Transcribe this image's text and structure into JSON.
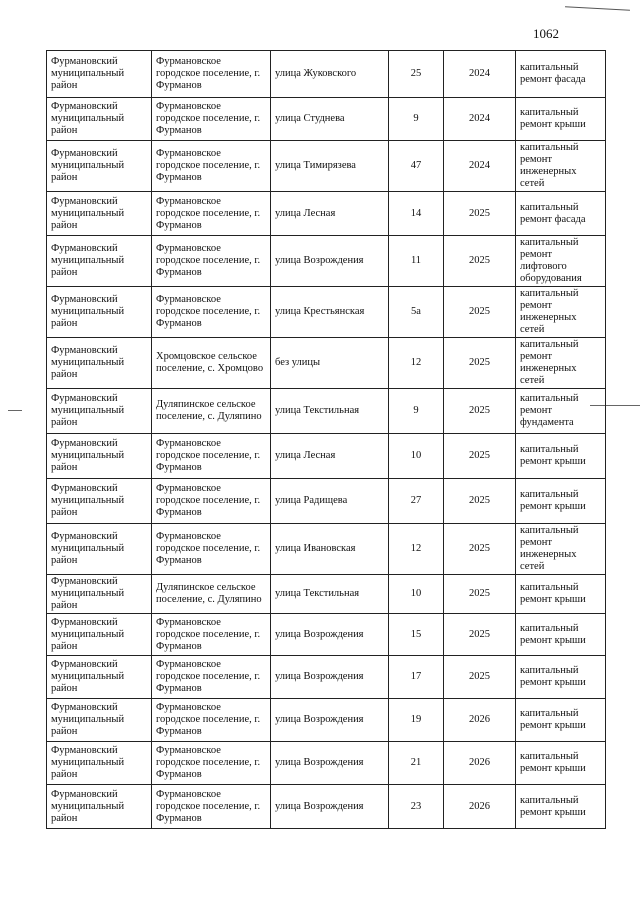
{
  "page_number": "1062",
  "rows": [
    {
      "district": "Фурмановский муниципальный район",
      "settlement": "Фурмановское городское поселение, г. Фурманов",
      "street": "улица  Жуковского",
      "house": "25",
      "year": "2024",
      "work": "капитальный ремонт фасада"
    },
    {
      "district": "Фурмановский муниципальный район",
      "settlement": "Фурмановское городское поселение, г. Фурманов",
      "street": "улица  Студнева",
      "house": "9",
      "year": "2024",
      "work": "капитальный ремонт крыши"
    },
    {
      "district": "Фурмановский муниципальный район",
      "settlement": "Фурмановское городское поселение, г. Фурманов",
      "street": "улица Тимирязева",
      "house": "47",
      "year": "2024",
      "work": "капитальный ремонт инженерных сетей"
    },
    {
      "district": "Фурмановский муниципальный район",
      "settlement": "Фурмановское городское поселение, г. Фурманов",
      "street": "улица Лесная",
      "house": "14",
      "year": "2025",
      "work": "капитальный ремонт фасада"
    },
    {
      "district": "Фурмановский муниципальный район",
      "settlement": "Фурмановское городское поселение, г. Фурманов",
      "street": "улица Возрождения",
      "house": "11",
      "year": "2025",
      "work": "капитальный ремонт лифтового оборудования"
    },
    {
      "district": "Фурмановский муниципальный район",
      "settlement": "Фурмановское городское поселение, г. Фурманов",
      "street": "улица Крестьянская",
      "house": "5а",
      "year": "2025",
      "work": "капитальный ремонт инженерных сетей"
    },
    {
      "district": "Фурмановский муниципальный район",
      "settlement": "Хромцовское сельское поселение, с. Хромцово",
      "street": "без улицы",
      "house": "12",
      "year": "2025",
      "work": "капитальный ремонт инженерных сетей"
    },
    {
      "district": "Фурмановский муниципальный район",
      "settlement": "Дуляпинское сельское поселение, с. Дуляпино",
      "street": "улица Текстильная",
      "house": "9",
      "year": "2025",
      "work": "капитальный ремонт фундамента"
    },
    {
      "district": "Фурмановский муниципальный район",
      "settlement": "Фурмановское городское поселение, г. Фурманов",
      "street": "улица Лесная",
      "house": "10",
      "year": "2025",
      "work": "капитальный ремонт крыши"
    },
    {
      "district": "Фурмановский муниципальный район",
      "settlement": "Фурмановское городское поселение, г. Фурманов",
      "street": "улица Радищева",
      "house": "27",
      "year": "2025",
      "work": "капитальный ремонт крыши"
    },
    {
      "district": "Фурмановский муниципальный район",
      "settlement": "Фурмановское городское поселение, г. Фурманов",
      "street": "улица  Ивановская",
      "house": "12",
      "year": "2025",
      "work": "капитальный ремонт инженерных сетей"
    },
    {
      "district": "Фурмановский муниципальный район",
      "settlement": "Дуляпинское сельское поселение, с. Дуляпино",
      "street": "улица Текстильная",
      "house": "10",
      "year": "2025",
      "work": "капитальный ремонт крыши"
    },
    {
      "district": "Фурмановский муниципальный район",
      "settlement": "Фурмановское городское поселение, г. Фурманов",
      "street": "улица Возрождения",
      "house": "15",
      "year": "2025",
      "work": "капитальный ремонт крыши"
    },
    {
      "district": "Фурмановский муниципальный район",
      "settlement": "Фурмановское городское поселение, г. Фурманов",
      "street": "улица Возрождения",
      "house": "17",
      "year": "2025",
      "work": "капитальный ремонт крыши"
    },
    {
      "district": "Фурмановский муниципальный район",
      "settlement": "Фурмановское городское поселение, г. Фурманов",
      "street": "улица Возрождения",
      "house": "19",
      "year": "2026",
      "work": "капитальный ремонт крыши"
    },
    {
      "district": "Фурмановский муниципальный район",
      "settlement": "Фурмановское городское поселение, г. Фурманов",
      "street": "улица Возрождения",
      "house": "21",
      "year": "2026",
      "work": "капитальный ремонт крыши"
    },
    {
      "district": "Фурмановский муниципальный район",
      "settlement": "Фурмановское городское поселение, г. Фурманов",
      "street": "улица Возрождения",
      "house": "23",
      "year": "2026",
      "work": "капитальный ремонт крыши"
    }
  ]
}
